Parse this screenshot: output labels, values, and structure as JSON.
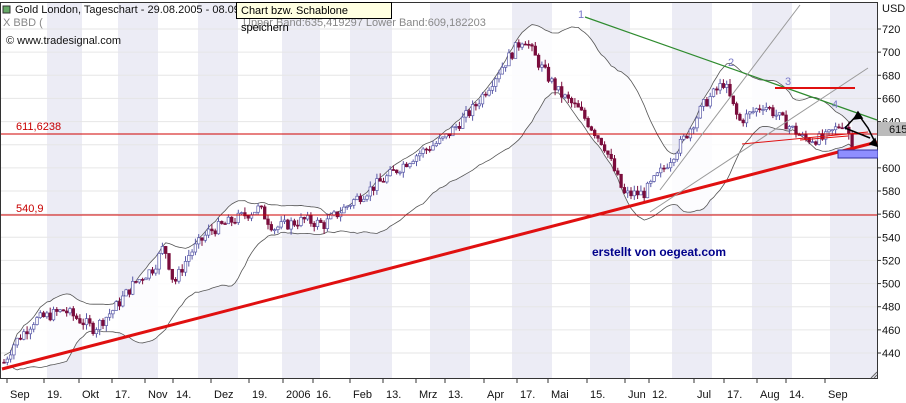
{
  "header": {
    "title": "Gold London, Tageschart - 29.08.2005 - 08.09",
    "source": "© www.tradesignal.com",
    "legend_prefix": "X BBD (",
    "legend_bands": "Upper Band:635,419297 Lower Band:609,182203"
  },
  "tooltip": {
    "text": "Chart bzw. Schablone speichern"
  },
  "annotations": {
    "credit": "erstellt von oegeat.com",
    "level_high": "611,6238",
    "level_low": "540,9",
    "price_tag": "615",
    "wave_1": "1",
    "wave_2": "2",
    "wave_3": "3",
    "wave_4": "4"
  },
  "colors": {
    "candle_up": "#5a5aa8",
    "candle_down": "#7a0d3c",
    "trend_red": "#e01010",
    "level_red": "#d00000",
    "resistance_green": "#2e8b2e",
    "band": "#555555",
    "stripe": "#dcdcec",
    "pricetag_bg": "#bbbbbb",
    "box_fill": "#8f8fff"
  },
  "chart_data": {
    "type": "candlestick",
    "title": "Gold London, Tageschart - 29.08.2005 - 08.09",
    "x_labels": [
      "Sep",
      "19.",
      "Okt",
      "17.",
      "Nov",
      "14.",
      "Dez",
      "19.",
      "2006",
      "16.",
      "Feb",
      "13.",
      "Mrz",
      "13.",
      "Apr",
      "17.",
      "Mai",
      "15.",
      "Jun",
      "12.",
      "Jul",
      "17.",
      "Aug",
      "14.",
      "Sep"
    ],
    "y_ticks": [
      440,
      460,
      480,
      500,
      520,
      540,
      560,
      580,
      600,
      620,
      640,
      660,
      680,
      700,
      720,
      "USD"
    ],
    "ylim": [
      428,
      732
    ],
    "n_bars": 260,
    "approx_closes": [
      [
        0,
        432
      ],
      [
        10,
        448
      ],
      [
        30,
        468
      ],
      [
        60,
        477
      ],
      [
        90,
        461
      ],
      [
        110,
        478
      ],
      [
        130,
        500
      ],
      [
        150,
        514
      ],
      [
        160,
        533
      ],
      [
        170,
        500
      ],
      [
        185,
        525
      ],
      [
        205,
        545
      ],
      [
        225,
        553
      ],
      [
        255,
        565
      ],
      [
        270,
        548
      ],
      [
        300,
        555
      ],
      [
        320,
        551
      ],
      [
        350,
        572
      ],
      [
        380,
        590
      ],
      [
        410,
        610
      ],
      [
        440,
        625
      ],
      [
        470,
        652
      ],
      [
        500,
        690
      ],
      [
        520,
        713
      ],
      [
        535,
        690
      ],
      [
        555,
        665
      ],
      [
        575,
        650
      ],
      [
        600,
        620
      ],
      [
        620,
        577
      ],
      [
        640,
        578
      ],
      [
        660,
        600
      ],
      [
        680,
        625
      ],
      [
        700,
        655
      ],
      [
        720,
        674
      ],
      [
        735,
        640
      ],
      [
        760,
        655
      ],
      [
        780,
        640
      ],
      [
        800,
        625
      ],
      [
        820,
        625
      ],
      [
        840,
        640
      ],
      [
        851,
        615
      ]
    ],
    "series": [
      {
        "name": "Upper Band",
        "last": 635.419297
      },
      {
        "name": "Lower Band",
        "last": 609.182203
      }
    ],
    "horizontal_levels": [
      611.6238,
      540.9
    ],
    "last_price": 615
  }
}
